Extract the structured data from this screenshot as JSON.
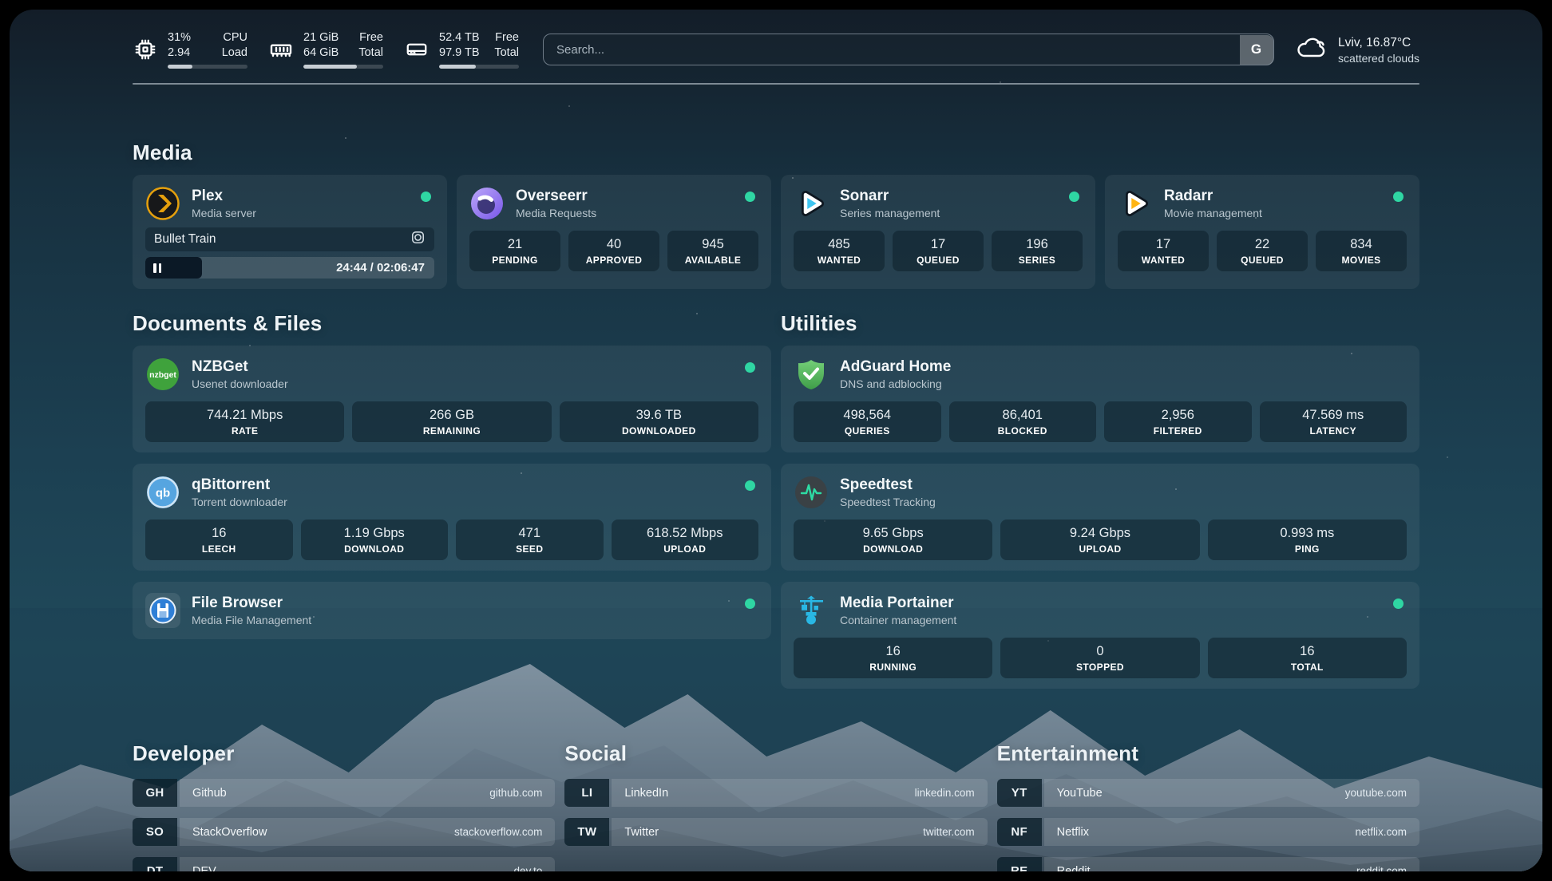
{
  "colors": {
    "status_online": "#2fd6a3",
    "plex_accent": "#e5a00d",
    "overseerr_accent": "#8a6ff0",
    "sonarr_accent": "#3fc5f0",
    "radarr_accent": "#ffb411",
    "nzbget_accent": "#3fa23c",
    "qbittorrent_accent": "#56a5e0",
    "adguard_accent": "#5cb663",
    "speedtest_accent": "#2ddca4",
    "portainer_accent": "#29b8e5"
  },
  "search": {
    "placeholder": "Search...",
    "engine_button": "G"
  },
  "weather": {
    "icon": "cloud-icon",
    "location_temp": "Lviv, 16.87°C",
    "condition": "scattered clouds"
  },
  "system": {
    "cpu": {
      "icon": "cpu-icon",
      "value_top": "31%",
      "value_bottom": "2.94",
      "label_top": "CPU",
      "label_bottom": "Load",
      "pct": 31
    },
    "memory": {
      "icon": "memory-icon",
      "value_top": "21 GiB",
      "value_bottom": "64 GiB",
      "label_top": "Free",
      "label_bottom": "Total",
      "pct": 67
    },
    "storage": {
      "icon": "disk-icon",
      "value_top": "52.4 TB",
      "value_bottom": "97.9 TB",
      "label_top": "Free",
      "label_bottom": "Total",
      "pct": 46
    }
  },
  "media": {
    "heading": "Media",
    "plex": {
      "name": "Plex",
      "desc": "Media server",
      "status": "online",
      "now_playing": "Bullet Train",
      "time": "24:44 / 02:06:47",
      "progress_pct": 19.5
    },
    "overseerr": {
      "name": "Overseerr",
      "desc": "Media Requests",
      "status": "online",
      "stats": [
        {
          "value": "21",
          "label": "PENDING"
        },
        {
          "value": "40",
          "label": "APPROVED"
        },
        {
          "value": "945",
          "label": "AVAILABLE"
        }
      ]
    },
    "sonarr": {
      "name": "Sonarr",
      "desc": "Series management",
      "status": "online",
      "stats": [
        {
          "value": "485",
          "label": "WANTED"
        },
        {
          "value": "17",
          "label": "QUEUED"
        },
        {
          "value": "196",
          "label": "SERIES"
        }
      ]
    },
    "radarr": {
      "name": "Radarr",
      "desc": "Movie management",
      "status": "online",
      "stats": [
        {
          "value": "17",
          "label": "WANTED"
        },
        {
          "value": "22",
          "label": "QUEUED"
        },
        {
          "value": "834",
          "label": "MOVIES"
        }
      ]
    }
  },
  "documents": {
    "heading": "Documents & Files",
    "nzbget": {
      "name": "NZBGet",
      "desc": "Usenet downloader",
      "status": "online",
      "stats": [
        {
          "value": "744.21 Mbps",
          "label": "RATE"
        },
        {
          "value": "266 GB",
          "label": "REMAINING"
        },
        {
          "value": "39.6 TB",
          "label": "DOWNLOADED"
        }
      ]
    },
    "qbittorrent": {
      "name": "qBittorrent",
      "desc": "Torrent downloader",
      "status": "online",
      "stats": [
        {
          "value": "16",
          "label": "LEECH"
        },
        {
          "value": "1.19 Gbps",
          "label": "DOWNLOAD"
        },
        {
          "value": "471",
          "label": "SEED"
        },
        {
          "value": "618.52 Mbps",
          "label": "UPLOAD"
        }
      ]
    },
    "filebrowser": {
      "name": "File Browser",
      "desc": "Media File Management",
      "status": "online"
    }
  },
  "utilities": {
    "heading": "Utilities",
    "adguard": {
      "name": "AdGuard Home",
      "desc": "DNS and adblocking",
      "stats": [
        {
          "value": "498,564",
          "label": "QUERIES"
        },
        {
          "value": "86,401",
          "label": "BLOCKED"
        },
        {
          "value": "2,956",
          "label": "FILTERED"
        },
        {
          "value": "47.569 ms",
          "label": "LATENCY"
        }
      ]
    },
    "speedtest": {
      "name": "Speedtest",
      "desc": "Speedtest Tracking",
      "stats": [
        {
          "value": "9.65 Gbps",
          "label": "DOWNLOAD"
        },
        {
          "value": "9.24 Gbps",
          "label": "UPLOAD"
        },
        {
          "value": "0.993 ms",
          "label": "PING"
        }
      ]
    },
    "portainer": {
      "name": "Media Portainer",
      "desc": "Container management",
      "status": "online",
      "stats": [
        {
          "value": "16",
          "label": "RUNNING"
        },
        {
          "value": "0",
          "label": "STOPPED"
        },
        {
          "value": "16",
          "label": "TOTAL"
        }
      ]
    }
  },
  "bookmarks": {
    "developer": {
      "heading": "Developer",
      "items": [
        {
          "abbr": "GH",
          "name": "Github",
          "url": "github.com"
        },
        {
          "abbr": "SO",
          "name": "StackOverflow",
          "url": "stackoverflow.com"
        },
        {
          "abbr": "DT",
          "name": "DEV",
          "url": "dev.to"
        }
      ]
    },
    "social": {
      "heading": "Social",
      "items": [
        {
          "abbr": "LI",
          "name": "LinkedIn",
          "url": "linkedin.com"
        },
        {
          "abbr": "TW",
          "name": "Twitter",
          "url": "twitter.com"
        }
      ]
    },
    "entertainment": {
      "heading": "Entertainment",
      "items": [
        {
          "abbr": "YT",
          "name": "YouTube",
          "url": "youtube.com"
        },
        {
          "abbr": "NF",
          "name": "Netflix",
          "url": "netflix.com"
        },
        {
          "abbr": "RE",
          "name": "Reddit",
          "url": "reddit.com"
        }
      ]
    }
  }
}
